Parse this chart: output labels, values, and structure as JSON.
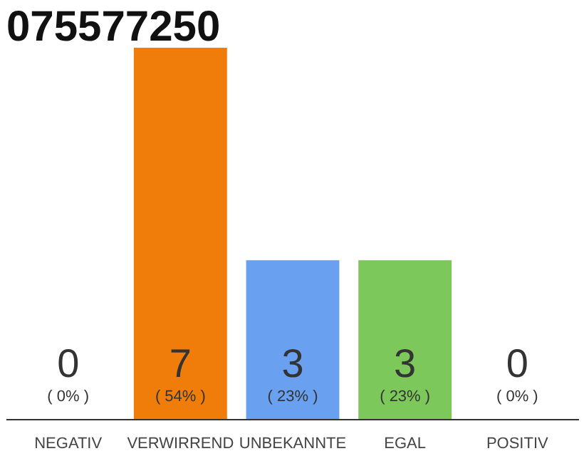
{
  "chart_data": {
    "type": "bar",
    "title": "075577250",
    "categories": [
      "NEGATIV",
      "VERWIRREND",
      "UNBEKANNTE",
      "EGAL",
      "POSITIV"
    ],
    "values": [
      0,
      7,
      3,
      3,
      0
    ],
    "colors": [
      "#dddddd",
      "#f07d0a",
      "#6aa0f0",
      "#7dc85a",
      "#dddddd"
    ],
    "grid": false,
    "tick_labels": "x",
    "data_labels": true,
    "annotations": [
      "( 0% )",
      "( 54% )",
      "( 23% )",
      "( 23% )",
      "( 0% )"
    ]
  }
}
